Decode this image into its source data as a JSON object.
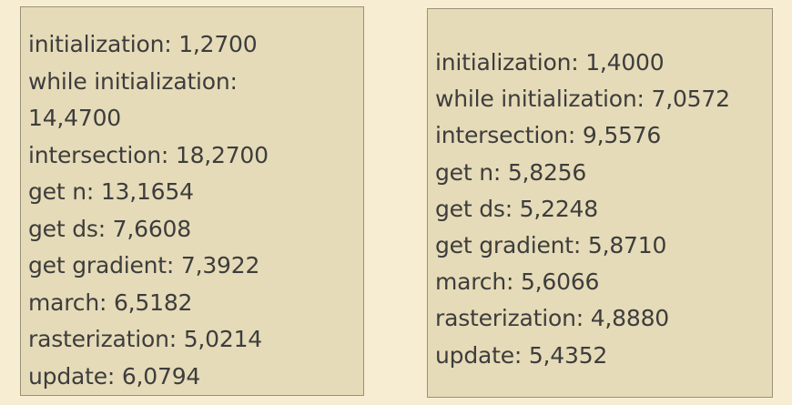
{
  "left_panel": {
    "lines": [
      "initialization: 1,2700",
      "while initialization:",
      "14,4700",
      "intersection: 18,2700",
      "get n: 13,1654",
      "get ds: 7,6608",
      "get gradient: 7,3922",
      "march: 6,5182",
      "rasterization: 5,0214",
      "update: 6,0794"
    ]
  },
  "right_panel": {
    "lines": [
      "initialization: 1,4000",
      "while initialization: 7,0572",
      "intersection: 9,5576",
      "get n: 5,8256",
      "get ds: 5,2248",
      "get gradient: 5,8710",
      "march: 5,6066",
      "rasterization: 4,8880",
      "update: 5,4352"
    ]
  }
}
